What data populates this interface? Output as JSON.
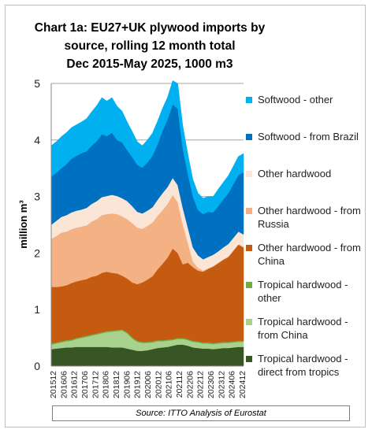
{
  "chart_data": {
    "type": "area",
    "stacked": true,
    "title": "Chart 1a: EU27+UK plywood imports by source, rolling 12 month total\nDec 2015-May 2025, 1000 m3",
    "ylabel": "million m³",
    "xlabel": "",
    "ylim": [
      0,
      5
    ],
    "yticks": [
      "0",
      "1",
      "2",
      "3",
      "4",
      "5"
    ],
    "grid": "horizontal",
    "legend_position": "right",
    "source": "Source: ITTO Analysis of Eurostat",
    "x_tick_labels": [
      "201512",
      "201606",
      "201612",
      "201706",
      "201712",
      "201806",
      "201812",
      "201906",
      "201912",
      "202006",
      "202012",
      "202106",
      "202112",
      "202206",
      "202212",
      "202306",
      "202312",
      "202406",
      "202412"
    ],
    "x": [
      "201512",
      "201603",
      "201606",
      "201609",
      "201612",
      "201703",
      "201706",
      "201709",
      "201712",
      "201803",
      "201806",
      "201809",
      "201812",
      "201903",
      "201906",
      "201909",
      "201912",
      "202003",
      "202006",
      "202009",
      "202012",
      "202103",
      "202106",
      "202109",
      "202112",
      "202203",
      "202206",
      "202209",
      "202212",
      "202303",
      "202306",
      "202309",
      "202312",
      "202403",
      "202406",
      "202409",
      "202412",
      "202503",
      "202505"
    ],
    "series": [
      {
        "name": "Tropical hardwood - direct from tropics",
        "color": "#375623",
        "values": [
          0.3,
          0.31,
          0.32,
          0.33,
          0.33,
          0.34,
          0.34,
          0.34,
          0.34,
          0.34,
          0.34,
          0.34,
          0.33,
          0.33,
          0.33,
          0.31,
          0.29,
          0.27,
          0.27,
          0.28,
          0.3,
          0.32,
          0.33,
          0.34,
          0.36,
          0.38,
          0.38,
          0.36,
          0.33,
          0.32,
          0.31,
          0.31,
          0.3,
          0.31,
          0.32,
          0.32,
          0.33,
          0.34,
          0.34
        ]
      },
      {
        "name": "Tropical hardwood - from China",
        "color": "#a9d18e",
        "values": [
          0.08,
          0.09,
          0.1,
          0.11,
          0.12,
          0.14,
          0.16,
          0.18,
          0.2,
          0.22,
          0.24,
          0.26,
          0.28,
          0.29,
          0.3,
          0.27,
          0.2,
          0.16,
          0.14,
          0.13,
          0.12,
          0.12,
          0.11,
          0.11,
          0.1,
          0.1,
          0.1,
          0.1,
          0.1,
          0.1,
          0.09,
          0.09,
          0.09,
          0.09,
          0.09,
          0.09,
          0.09,
          0.09,
          0.09
        ]
      },
      {
        "name": "Tropical hardwood - other",
        "color": "#70ad47",
        "values": [
          0.02,
          0.02,
          0.02,
          0.02,
          0.02,
          0.02,
          0.02,
          0.02,
          0.02,
          0.02,
          0.02,
          0.02,
          0.02,
          0.02,
          0.02,
          0.02,
          0.02,
          0.02,
          0.02,
          0.02,
          0.02,
          0.02,
          0.02,
          0.02,
          0.02,
          0.02,
          0.02,
          0.02,
          0.02,
          0.02,
          0.02,
          0.02,
          0.02,
          0.02,
          0.02,
          0.02,
          0.02,
          0.02,
          0.02
        ]
      },
      {
        "name": "Other hardwood - from China",
        "color": "#c55a11",
        "values": [
          1.0,
          0.98,
          0.97,
          0.97,
          1.0,
          1.0,
          1.0,
          1.0,
          1.02,
          1.02,
          1.05,
          1.05,
          1.02,
          1.0,
          0.95,
          0.95,
          0.97,
          1.0,
          1.05,
          1.1,
          1.15,
          1.25,
          1.35,
          1.45,
          1.6,
          1.5,
          1.3,
          1.35,
          1.3,
          1.25,
          1.25,
          1.3,
          1.35,
          1.4,
          1.45,
          1.5,
          1.6,
          1.7,
          1.65
        ]
      },
      {
        "name": "Other hardwood - from Russia",
        "color": "#f4b183",
        "values": [
          0.85,
          0.9,
          0.95,
          0.95,
          0.95,
          0.95,
          0.95,
          0.95,
          0.98,
          1.0,
          1.02,
          1.02,
          1.05,
          1.05,
          1.05,
          1.05,
          1.05,
          1.0,
          0.95,
          0.95,
          0.95,
          0.95,
          0.95,
          0.95,
          0.95,
          0.9,
          0.7,
          0.35,
          0.1,
          0.05,
          0.02,
          0.01,
          0.01,
          0.01,
          0.01,
          0.01,
          0.01,
          0.01,
          0.01
        ]
      },
      {
        "name": "Other hardwood",
        "color": "#fbe5d6",
        "values": [
          0.25,
          0.27,
          0.28,
          0.29,
          0.3,
          0.3,
          0.3,
          0.31,
          0.31,
          0.32,
          0.32,
          0.32,
          0.33,
          0.32,
          0.32,
          0.32,
          0.3,
          0.28,
          0.27,
          0.27,
          0.27,
          0.28,
          0.3,
          0.3,
          0.3,
          0.3,
          0.3,
          0.27,
          0.25,
          0.22,
          0.2,
          0.2,
          0.2,
          0.2,
          0.21,
          0.22,
          0.22,
          0.22,
          0.22
        ]
      },
      {
        "name": "Softwood - from Brazil",
        "color": "#0070c0",
        "values": [
          0.85,
          0.85,
          0.86,
          0.9,
          0.95,
          0.97,
          1.0,
          1.0,
          1.03,
          1.06,
          1.11,
          1.06,
          1.1,
          0.99,
          0.99,
          0.9,
          0.87,
          0.83,
          0.81,
          0.85,
          0.91,
          0.98,
          1.1,
          1.2,
          1.3,
          1.35,
          1.05,
          0.95,
          0.9,
          0.8,
          0.8,
          0.8,
          0.75,
          0.8,
          0.85,
          0.9,
          0.95,
          1.0,
          1.1
        ]
      },
      {
        "name": "Softwood - other",
        "color": "#00b0f0",
        "values": [
          0.55,
          0.55,
          0.56,
          0.56,
          0.55,
          0.55,
          0.55,
          0.58,
          0.6,
          0.63,
          0.65,
          0.62,
          0.62,
          0.6,
          0.55,
          0.5,
          0.45,
          0.41,
          0.39,
          0.4,
          0.4,
          0.41,
          0.4,
          0.39,
          0.42,
          0.45,
          0.4,
          0.35,
          0.3,
          0.3,
          0.28,
          0.27,
          0.28,
          0.3,
          0.3,
          0.31,
          0.32,
          0.33,
          0.33
        ]
      }
    ]
  }
}
